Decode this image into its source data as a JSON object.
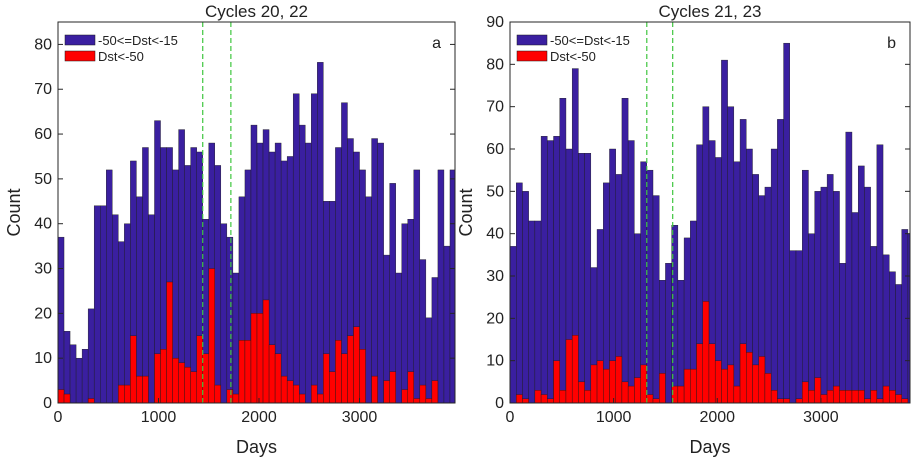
{
  "colors": {
    "moderate": "#3a1fa0",
    "intense": "#ff0000",
    "guide": "#3ec63e",
    "axis": "#262626"
  },
  "chart_data": [
    {
      "type": "bar",
      "title": "Cycles  20, 22",
      "panel_letter": "a",
      "xlabel": "Days",
      "ylabel": "Count",
      "xlim": [
        0,
        3950
      ],
      "ylim": [
        0,
        85
      ],
      "xticks": [
        0,
        1000,
        2000,
        3000
      ],
      "xtick_labels": [
        "0",
        "1000",
        "2000",
        "3000"
      ],
      "yticks": [
        0,
        10,
        20,
        30,
        40,
        50,
        60,
        70,
        80
      ],
      "ytick_labels": [
        "0",
        "10",
        "20",
        "30",
        "40",
        "50",
        "60",
        "70",
        "80"
      ],
      "bin_width": 60,
      "x_start": 0,
      "guide_lines_x": [
        1440,
        1720
      ],
      "legend": {
        "position": "top-left"
      },
      "series": [
        {
          "name": "-50<=Dst<-15",
          "color_key": "moderate",
          "values": [
            37,
            16,
            13,
            10,
            12,
            21,
            44,
            44,
            52,
            42,
            36,
            40,
            54,
            46,
            57,
            42,
            63,
            57,
            57,
            52,
            61,
            53,
            57,
            56,
            41,
            58,
            53,
            40,
            37,
            29,
            46,
            52,
            62,
            58,
            61,
            56,
            58,
            54,
            55,
            69,
            62,
            58,
            69,
            76,
            45,
            45,
            57,
            67,
            59,
            56,
            52,
            46,
            59,
            58,
            33,
            49,
            29,
            40,
            41,
            52,
            32,
            19,
            28,
            52,
            35,
            52
          ]
        },
        {
          "name": "Dst<-50",
          "color_key": "intense",
          "values": [
            3,
            2,
            0,
            0,
            0,
            1,
            0,
            0,
            0,
            0,
            4,
            4,
            15,
            6,
            6,
            0,
            11,
            12,
            27,
            10,
            9,
            8,
            7,
            15,
            11,
            30,
            4,
            0,
            3,
            2,
            14,
            14,
            20,
            20,
            23,
            13,
            11,
            6,
            5,
            4,
            2,
            0,
            4,
            2,
            11,
            7,
            14,
            11,
            15,
            17,
            12,
            0,
            6,
            0,
            5,
            7,
            0,
            3,
            7,
            1,
            4,
            1,
            5,
            0,
            0,
            0
          ]
        }
      ]
    },
    {
      "type": "bar",
      "title": "Cycles 21, 23",
      "panel_letter": "b",
      "xlabel": "Days",
      "ylabel": "Count",
      "xlim": [
        0,
        3860
      ],
      "ylim": [
        0,
        90
      ],
      "xticks": [
        0,
        1000,
        2000,
        3000
      ],
      "xtick_labels": [
        "0",
        "1000",
        "2000",
        "3000"
      ],
      "yticks": [
        0,
        10,
        20,
        30,
        40,
        50,
        60,
        70,
        80,
        90
      ],
      "ytick_labels": [
        "0",
        "10",
        "20",
        "30",
        "40",
        "50",
        "60",
        "70",
        "80",
        "90"
      ],
      "bin_width": 60,
      "x_start": 0,
      "guide_lines_x": [
        1320,
        1570
      ],
      "legend": {
        "position": "top-left"
      },
      "series": [
        {
          "name": "-50<=Dst<-15",
          "color_key": "moderate",
          "values": [
            37,
            52,
            50,
            43,
            43,
            63,
            62,
            63,
            72,
            60,
            79,
            59,
            59,
            32,
            41,
            52,
            60,
            54,
            72,
            62,
            40,
            57,
            55,
            49,
            29,
            33,
            42,
            29,
            39,
            43,
            61,
            70,
            62,
            58,
            81,
            70,
            57,
            67,
            60,
            54,
            49,
            51,
            60,
            67,
            85,
            36,
            36,
            55,
            40,
            50,
            51,
            54,
            50,
            33,
            64,
            45,
            56,
            51,
            37,
            61,
            35,
            31,
            28,
            41,
            40,
            24
          ]
        },
        {
          "name": "Dst<-50",
          "color_key": "intense",
          "values": [
            0,
            2,
            1,
            0,
            3,
            2,
            1,
            10,
            3,
            15,
            16,
            5,
            3,
            9,
            10,
            8,
            10,
            11,
            5,
            4,
            6,
            9,
            2,
            1,
            7,
            0,
            4,
            4,
            8,
            8,
            14,
            24,
            14,
            10,
            8,
            9,
            4,
            14,
            12,
            9,
            11,
            7,
            3,
            1,
            1,
            0,
            1,
            5,
            3,
            6,
            2,
            3,
            4,
            3,
            3,
            3,
            3,
            1,
            3,
            1,
            4,
            3,
            2,
            1,
            0,
            0
          ]
        }
      ]
    }
  ]
}
